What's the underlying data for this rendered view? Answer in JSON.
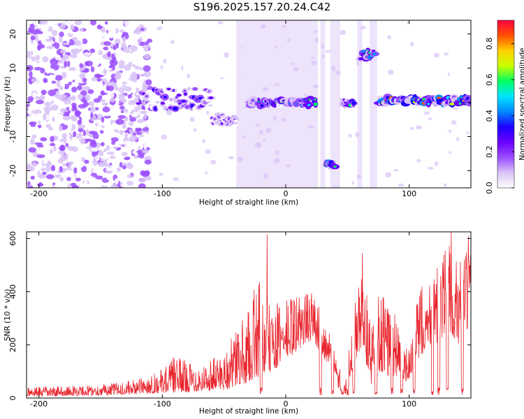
{
  "title": "S196.2025.157.20.24.C42",
  "chart_data": [
    {
      "type": "heatmap",
      "xlabel": "Height of straight line (km)",
      "ylabel": "Frequency (Hz)",
      "xlim": [
        -210,
        150
      ],
      "ylim": [
        -25,
        24
      ],
      "xticks": [
        -200,
        -100,
        0,
        100
      ],
      "yticks": [
        -20,
        -10,
        0,
        10,
        20
      ],
      "colorbar": {
        "label": "Normalized spectral amplitude",
        "range": [
          0,
          0.93
        ],
        "ticks": [
          0,
          0.2,
          0.4,
          0.6,
          0.8
        ],
        "colors": [
          "#ffffff",
          "#d9c3f7",
          "#9b4dff",
          "#6a00ff",
          "#1d00ff",
          "#0088ff",
          "#00e5ff",
          "#00ff60",
          "#c8ff00",
          "#ffd000",
          "#ff5000",
          "#ff0044"
        ]
      },
      "features": [
        {
          "x_range": [
            -210,
            -120
          ],
          "freq_range": [
            -25,
            24
          ],
          "level": 0.1,
          "pattern": "broadband noise"
        },
        {
          "x_range": [
            -120,
            -60
          ],
          "freq_center": 1,
          "freq_width": 6,
          "level": 0.3
        },
        {
          "x_range": [
            -60,
            -40
          ],
          "freq_center": -5,
          "freq_width": 3,
          "level": 0.3
        },
        {
          "x_range": [
            -30,
            25
          ],
          "freq_center": 0,
          "freq_width": 2,
          "level": 0.55
        },
        {
          "x_range": [
            32,
            40
          ],
          "freq_center": -18,
          "freq_width": 2,
          "level": 0.7
        },
        {
          "x_range": [
            46,
            56
          ],
          "freq_center": 0,
          "freq_width": 2,
          "level": 0.5
        },
        {
          "x_range": [
            60,
            72
          ],
          "freq_center": 14,
          "freq_width": 3,
          "level": 0.55
        },
        {
          "x_range": [
            75,
            150
          ],
          "freq_center": 0.5,
          "freq_width": 2,
          "level": 0.75
        }
      ]
    },
    {
      "type": "line",
      "xlabel": "Height of straight line (km)",
      "ylabel": "SNR (10 * v/v)",
      "xlim": [
        -210,
        150
      ],
      "ylim": [
        0,
        625
      ],
      "xticks": [
        -200,
        -100,
        0,
        100
      ],
      "yticks": [
        0,
        200,
        400,
        600
      ],
      "color": "#e8252d",
      "envelope": [
        {
          "x": -210,
          "low": 5,
          "high": 40
        },
        {
          "x": -150,
          "low": 10,
          "high": 50
        },
        {
          "x": -120,
          "low": 15,
          "high": 70
        },
        {
          "x": -100,
          "low": 20,
          "high": 110
        },
        {
          "x": -90,
          "low": 20,
          "high": 160
        },
        {
          "x": -70,
          "low": 25,
          "high": 120
        },
        {
          "x": -50,
          "low": 30,
          "high": 180
        },
        {
          "x": -40,
          "low": 40,
          "high": 260
        },
        {
          "x": -30,
          "low": 60,
          "high": 330
        },
        {
          "x": -22,
          "low": 80,
          "high": 480
        },
        {
          "x": -15,
          "low": 90,
          "high": 350
        },
        {
          "x": -5,
          "low": 120,
          "high": 360
        },
        {
          "x": 5,
          "low": 160,
          "high": 390
        },
        {
          "x": 15,
          "low": 200,
          "high": 400
        },
        {
          "x": 22,
          "low": 220,
          "high": 400
        },
        {
          "x": 28,
          "low": 170,
          "high": 340
        },
        {
          "x": 35,
          "low": 120,
          "high": 250
        },
        {
          "x": 42,
          "low": 40,
          "high": 130
        },
        {
          "x": 48,
          "low": 5,
          "high": 60
        },
        {
          "x": 52,
          "low": 80,
          "high": 260
        },
        {
          "x": 58,
          "low": 150,
          "high": 400
        },
        {
          "x": 63,
          "low": 200,
          "high": 520
        },
        {
          "x": 68,
          "low": 40,
          "high": 300
        },
        {
          "x": 75,
          "low": 100,
          "high": 420
        },
        {
          "x": 82,
          "low": 80,
          "high": 380
        },
        {
          "x": 90,
          "low": 80,
          "high": 330
        },
        {
          "x": 96,
          "low": 60,
          "high": 200
        },
        {
          "x": 100,
          "low": 70,
          "high": 180
        },
        {
          "x": 108,
          "low": 150,
          "high": 420
        },
        {
          "x": 115,
          "low": 200,
          "high": 460
        },
        {
          "x": 122,
          "low": 180,
          "high": 480
        },
        {
          "x": 128,
          "low": 220,
          "high": 560
        },
        {
          "x": 133,
          "low": 250,
          "high": 600
        },
        {
          "x": 140,
          "low": 200,
          "high": 520
        },
        {
          "x": 146,
          "low": 250,
          "high": 560
        },
        {
          "x": 150,
          "low": 260,
          "high": 540
        }
      ],
      "dips": [
        -20,
        28,
        38,
        45,
        50,
        55,
        73,
        86,
        94,
        104,
        119,
        124,
        131,
        143
      ],
      "peaks": [
        {
          "x": -15,
          "value": 615
        },
        {
          "x": 62,
          "value": 545
        },
        {
          "x": 134,
          "value": 625
        },
        {
          "x": 148,
          "value": 610
        }
      ]
    }
  ]
}
